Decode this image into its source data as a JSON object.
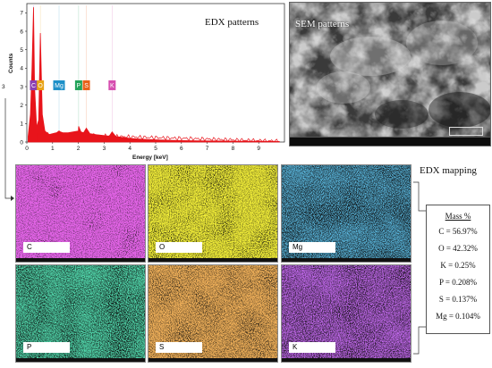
{
  "chart_data": {
    "type": "line",
    "title": "EDX patterns",
    "ylabel": "Counts",
    "xlabel": "Energy [keV]",
    "xlim": [
      0,
      10
    ],
    "ylim": [
      0,
      7.5
    ],
    "x_ticks": [
      0,
      1,
      2,
      3,
      4,
      5,
      6,
      7,
      8,
      9
    ],
    "y_ticks": [
      0,
      1,
      2,
      3,
      4,
      5,
      6,
      7
    ],
    "y_outer_label": "3",
    "series": [
      {
        "color": "#e8141b",
        "x": [
          0.05,
          0.14,
          0.2,
          0.26,
          0.3,
          0.38,
          0.46,
          0.525,
          0.6,
          0.7,
          0.85,
          1.0,
          1.15,
          1.25,
          1.3,
          1.4,
          1.6,
          1.8,
          2.0,
          2.01,
          2.1,
          2.2,
          2.31,
          2.45,
          2.7,
          3.0,
          3.2,
          3.31,
          3.45,
          3.7,
          4.0,
          4.5,
          5.0,
          6.0,
          7.0,
          8.0,
          9.0,
          9.8
        ],
        "y": [
          0.3,
          1.5,
          4.0,
          7.3,
          3.0,
          0.8,
          1.2,
          5.9,
          1.5,
          0.6,
          0.4,
          0.45,
          0.5,
          0.6,
          0.55,
          0.5,
          0.5,
          0.55,
          0.6,
          0.85,
          0.55,
          0.5,
          0.75,
          0.45,
          0.4,
          0.35,
          0.32,
          0.55,
          0.3,
          0.25,
          0.2,
          0.15,
          0.12,
          0.08,
          0.06,
          0.05,
          0.04,
          0.03
        ]
      }
    ],
    "peak_labels": [
      {
        "text": "C",
        "x": 0.26,
        "color": "#8b3fb3"
      },
      {
        "text": "O",
        "x": 0.525,
        "color": "#e8a317"
      },
      {
        "text": "Mg",
        "x": 1.25,
        "color": "#1e90c8"
      },
      {
        "text": "P",
        "x": 2.01,
        "color": "#23a35a"
      },
      {
        "text": "S",
        "x": 2.31,
        "color": "#e8611a"
      },
      {
        "text": "K",
        "x": 3.31,
        "color": "#d64fb0"
      }
    ]
  },
  "sem": {
    "title": "SEM patterns"
  },
  "mapping": {
    "title": "EDX mapping",
    "tiles": [
      {
        "label": "C",
        "color": "#c020c8"
      },
      {
        "label": "O",
        "color": "#dcd40a"
      },
      {
        "label": "Mg",
        "color": "#1e8cd8"
      },
      {
        "label": "P",
        "color": "#18c878"
      },
      {
        "label": "S",
        "color": "#e0701a"
      },
      {
        "label": "K",
        "color": "#8a24d8"
      }
    ]
  },
  "mass": {
    "heading": "Mass %",
    "rows": [
      "C = 56.97%",
      "O = 42.32%",
      "K = 0.25%",
      "P = 0.208%",
      "S = 0.137%",
      "Mg = 0.104%"
    ]
  }
}
